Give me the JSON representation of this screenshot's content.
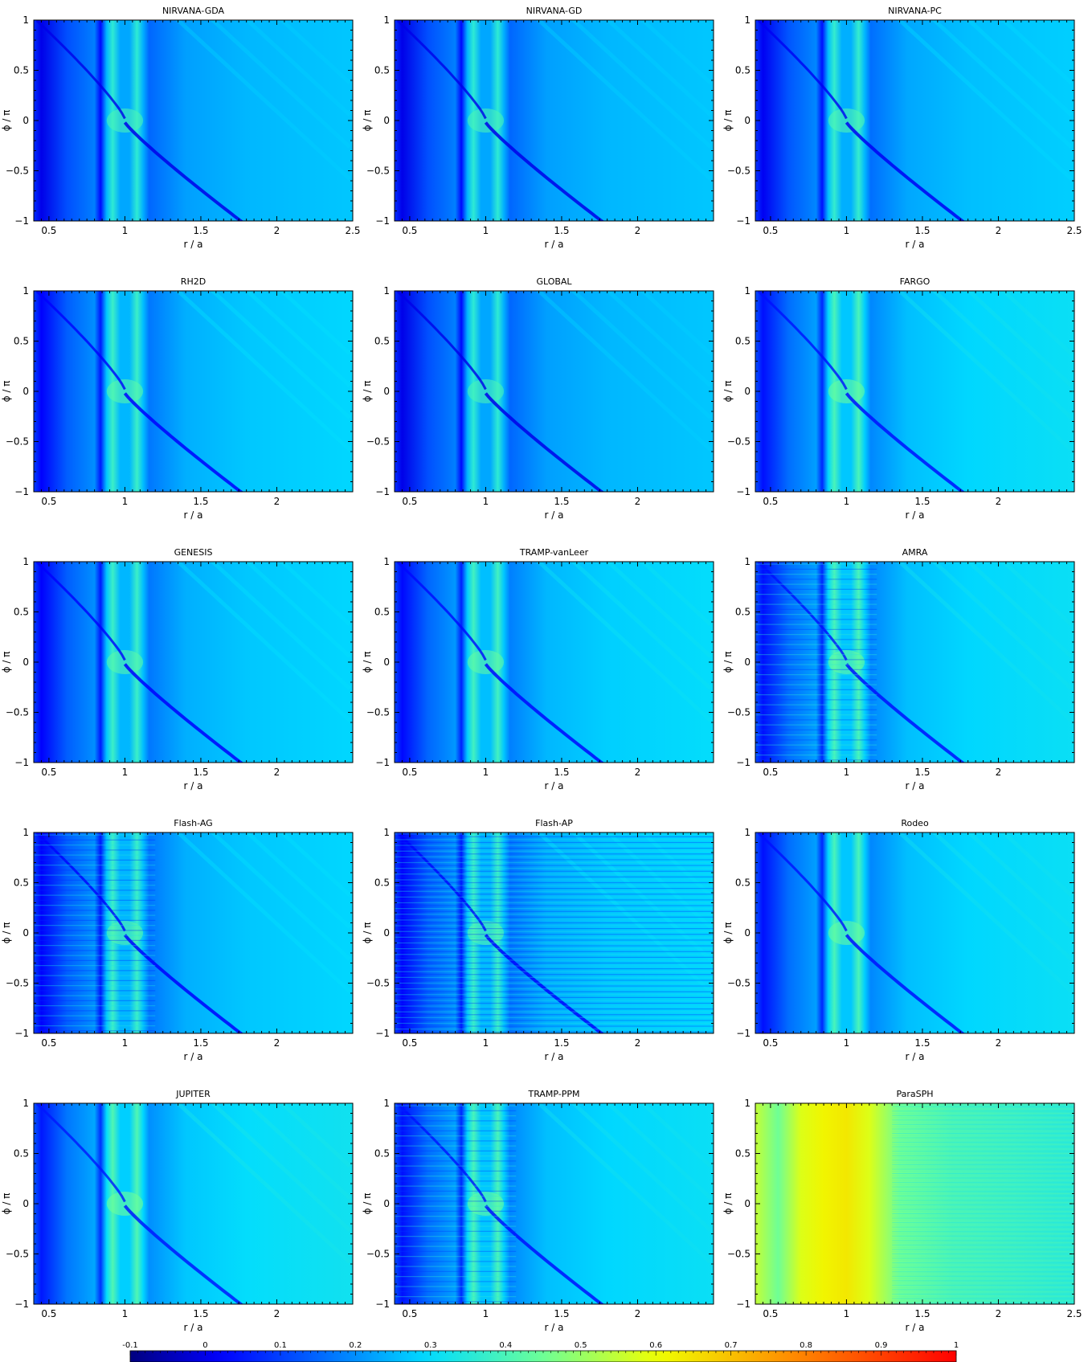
{
  "chart_data": {
    "type": "heatmap",
    "xlabel": "r / a",
    "ylabel": "ϕ / π",
    "ylim": [
      -1,
      1
    ],
    "yticks": [
      -1,
      -0.5,
      0,
      0.5,
      1
    ],
    "colorscale": {
      "min": -0.1,
      "max": 1,
      "ticks": [
        -0.1,
        0,
        0.1,
        0.2,
        0.3,
        0.4,
        0.5,
        0.6,
        0.7,
        0.8,
        0.9,
        1
      ],
      "tick_labels": [
        "-0.1",
        "0",
        "0.1",
        "0.2",
        "0.3",
        "0.4",
        "0.5",
        "0.6",
        "0.7",
        "0.8",
        "0.9",
        "1"
      ],
      "colors": [
        "#00007f",
        "#0000ff",
        "#007fff",
        "#00ffff",
        "#7fff7f",
        "#ffff00",
        "#ff7f00",
        "#ff0000"
      ]
    },
    "panels": [
      {
        "title": "NIRVANA-GDA",
        "xlim": [
          0.4,
          2.5
        ],
        "xticks": [
          0.5,
          1,
          1.5,
          2,
          2.5
        ],
        "xtick_labels": [
          "0.5",
          "1",
          "1.5",
          "2",
          "2.5"
        ],
        "style": "smooth",
        "base": 0.2
      },
      {
        "title": "NIRVANA-GD",
        "xlim": [
          0.4,
          2.5
        ],
        "xticks": [
          0.5,
          1,
          1.5,
          2
        ],
        "xtick_labels": [
          "0.5",
          "1",
          "1.5",
          "2"
        ],
        "style": "smooth",
        "base": 0.2
      },
      {
        "title": "NIRVANA-PC",
        "xlim": [
          0.4,
          2.5
        ],
        "xticks": [
          0.5,
          1,
          1.5,
          2,
          2.5
        ],
        "xtick_labels": [
          "0.5",
          "1",
          "1.5",
          "2",
          "2.5"
        ],
        "style": "smooth",
        "base": 0.21
      },
      {
        "title": "RH2D",
        "xlim": [
          0.4,
          2.5
        ],
        "xticks": [
          0.5,
          1,
          1.5,
          2
        ],
        "xtick_labels": [
          "0.5",
          "1",
          "1.5",
          "2"
        ],
        "style": "smooth",
        "base": 0.22
      },
      {
        "title": "GLOBAL",
        "xlim": [
          0.4,
          2.5
        ],
        "xticks": [
          0.5,
          1,
          1.5,
          2
        ],
        "xtick_labels": [
          "0.5",
          "1",
          "1.5",
          "2"
        ],
        "style": "smooth",
        "base": 0.2
      },
      {
        "title": "FARGO",
        "xlim": [
          0.4,
          2.5
        ],
        "xticks": [
          0.5,
          1,
          1.5,
          2
        ],
        "xtick_labels": [
          "0.5",
          "1",
          "1.5",
          "2"
        ],
        "style": "smooth",
        "base": 0.24
      },
      {
        "title": "GENESIS",
        "xlim": [
          0.4,
          2.5
        ],
        "xticks": [
          0.5,
          1,
          1.5,
          2
        ],
        "xtick_labels": [
          "0.5",
          "1",
          "1.5",
          "2"
        ],
        "style": "smooth",
        "base": 0.22
      },
      {
        "title": "TRAMP-vanLeer",
        "xlim": [
          0.4,
          2.5
        ],
        "xticks": [
          0.5,
          1,
          1.5,
          2
        ],
        "xtick_labels": [
          "0.5",
          "1",
          "1.5",
          "2"
        ],
        "style": "smooth",
        "base": 0.23
      },
      {
        "title": "AMRA",
        "xlim": [
          0.4,
          2.5
        ],
        "xticks": [
          0.5,
          1,
          1.5,
          2
        ],
        "xtick_labels": [
          "0.5",
          "1",
          "1.5",
          "2"
        ],
        "style": "noisy",
        "base": 0.24
      },
      {
        "title": "Flash-AG",
        "xlim": [
          0.4,
          2.5
        ],
        "xticks": [
          0.5,
          1,
          1.5,
          2
        ],
        "xtick_labels": [
          "0.5",
          "1",
          "1.5",
          "2"
        ],
        "style": "noisy",
        "base": 0.22
      },
      {
        "title": "Flash-AP",
        "xlim": [
          0.4,
          2.5
        ],
        "xticks": [
          0.5,
          1,
          1.5,
          2
        ],
        "xtick_labels": [
          "0.5",
          "1",
          "1.5",
          "2"
        ],
        "style": "striped",
        "base": 0.22
      },
      {
        "title": "Rodeo",
        "xlim": [
          0.4,
          2.5
        ],
        "xticks": [
          0.5,
          1,
          1.5,
          2
        ],
        "xtick_labels": [
          "0.5",
          "1",
          "1.5",
          "2"
        ],
        "style": "smooth",
        "base": 0.24
      },
      {
        "title": "JUPITER",
        "xlim": [
          0.4,
          2.5
        ],
        "xticks": [
          0.5,
          1,
          1.5,
          2
        ],
        "xtick_labels": [
          "0.5",
          "1",
          "1.5",
          "2"
        ],
        "style": "smooth",
        "base": 0.25
      },
      {
        "title": "TRAMP-PPM",
        "xlim": [
          0.4,
          2.5
        ],
        "xticks": [
          0.5,
          1,
          1.5,
          2
        ],
        "xtick_labels": [
          "0.5",
          "1",
          "1.5",
          "2"
        ],
        "style": "noisy",
        "base": 0.24
      },
      {
        "title": "ParaSPH",
        "xlim": [
          0.4,
          2.5
        ],
        "xticks": [
          0.5,
          1,
          1.5,
          2,
          2.5
        ],
        "xtick_labels": [
          "0.5",
          "1",
          "1.5",
          "2",
          "2.5"
        ],
        "style": "sph",
        "base": 0.4
      }
    ]
  }
}
